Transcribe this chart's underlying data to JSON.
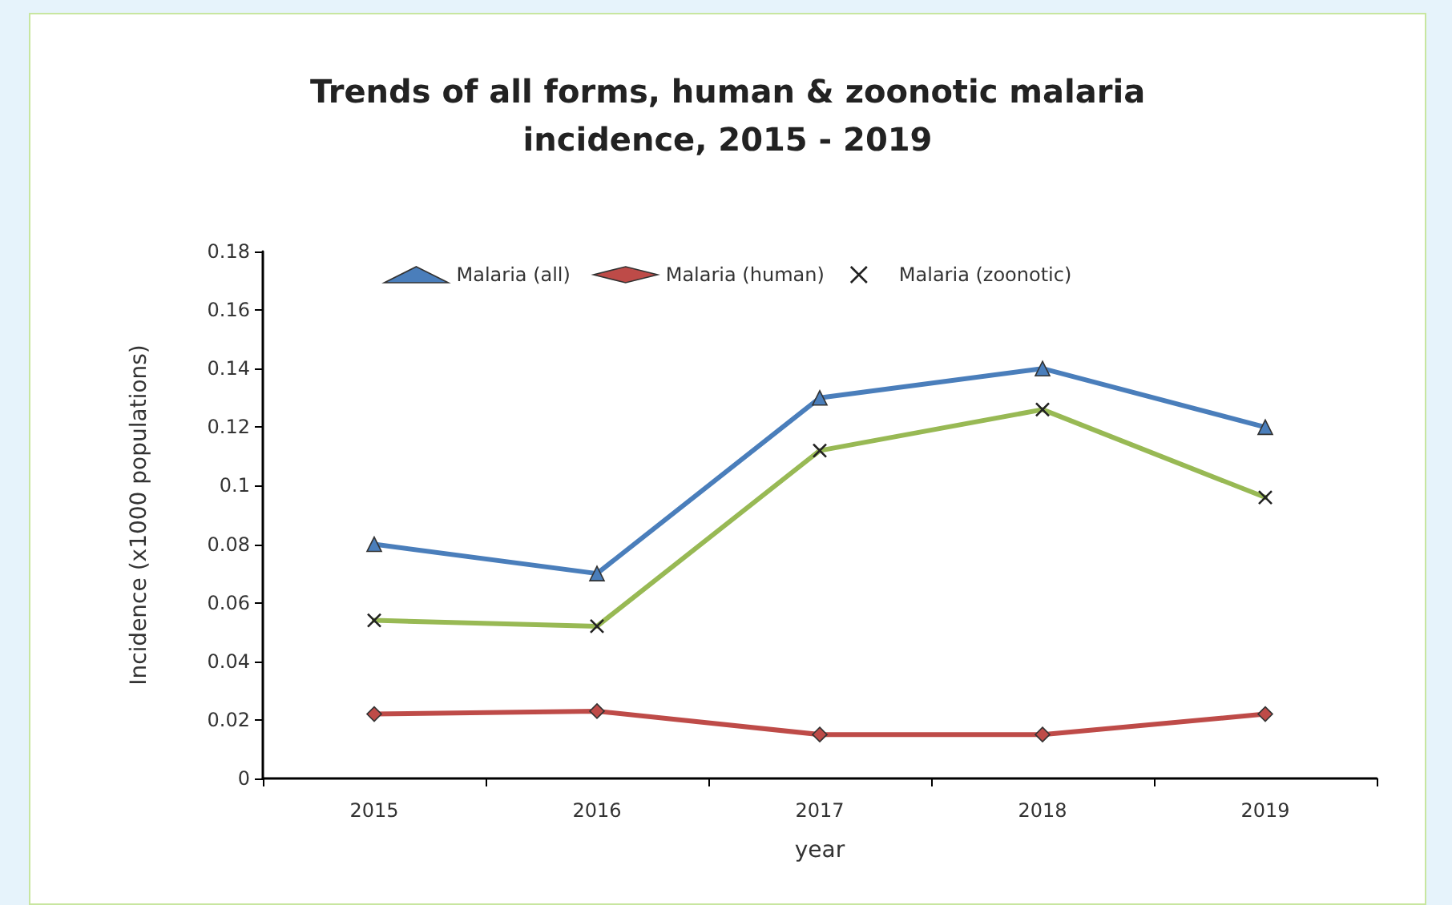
{
  "chart_data": {
    "type": "line",
    "title": "Trends of all forms, human & zoonotic malaria\nincidence, 2015 - 2019",
    "xlabel": "year",
    "ylabel": "Incidence (x1000 populations)",
    "categories": [
      "2015",
      "2016",
      "2017",
      "2018",
      "2019"
    ],
    "series": [
      {
        "name": "Malaria (all)",
        "color": "#4a7ebb",
        "marker": "triangle",
        "values": [
          0.08,
          0.07,
          0.13,
          0.14,
          0.12
        ]
      },
      {
        "name": "Malaria (human)",
        "color": "#be4b48",
        "marker": "diamond",
        "values": [
          0.022,
          0.023,
          0.015,
          0.015,
          0.022
        ]
      },
      {
        "name": "Malaria (zoonotic)",
        "color": "#98b954",
        "marker": "cross",
        "values": [
          0.054,
          0.052,
          0.112,
          0.126,
          0.096
        ]
      }
    ],
    "ylim": [
      0,
      0.18
    ],
    "yticks": [
      0,
      0.02,
      0.04,
      0.06,
      0.08,
      0.1,
      0.12,
      0.14,
      0.16,
      0.18
    ],
    "grid": false,
    "legend": "top",
    "line_style": "solid"
  }
}
